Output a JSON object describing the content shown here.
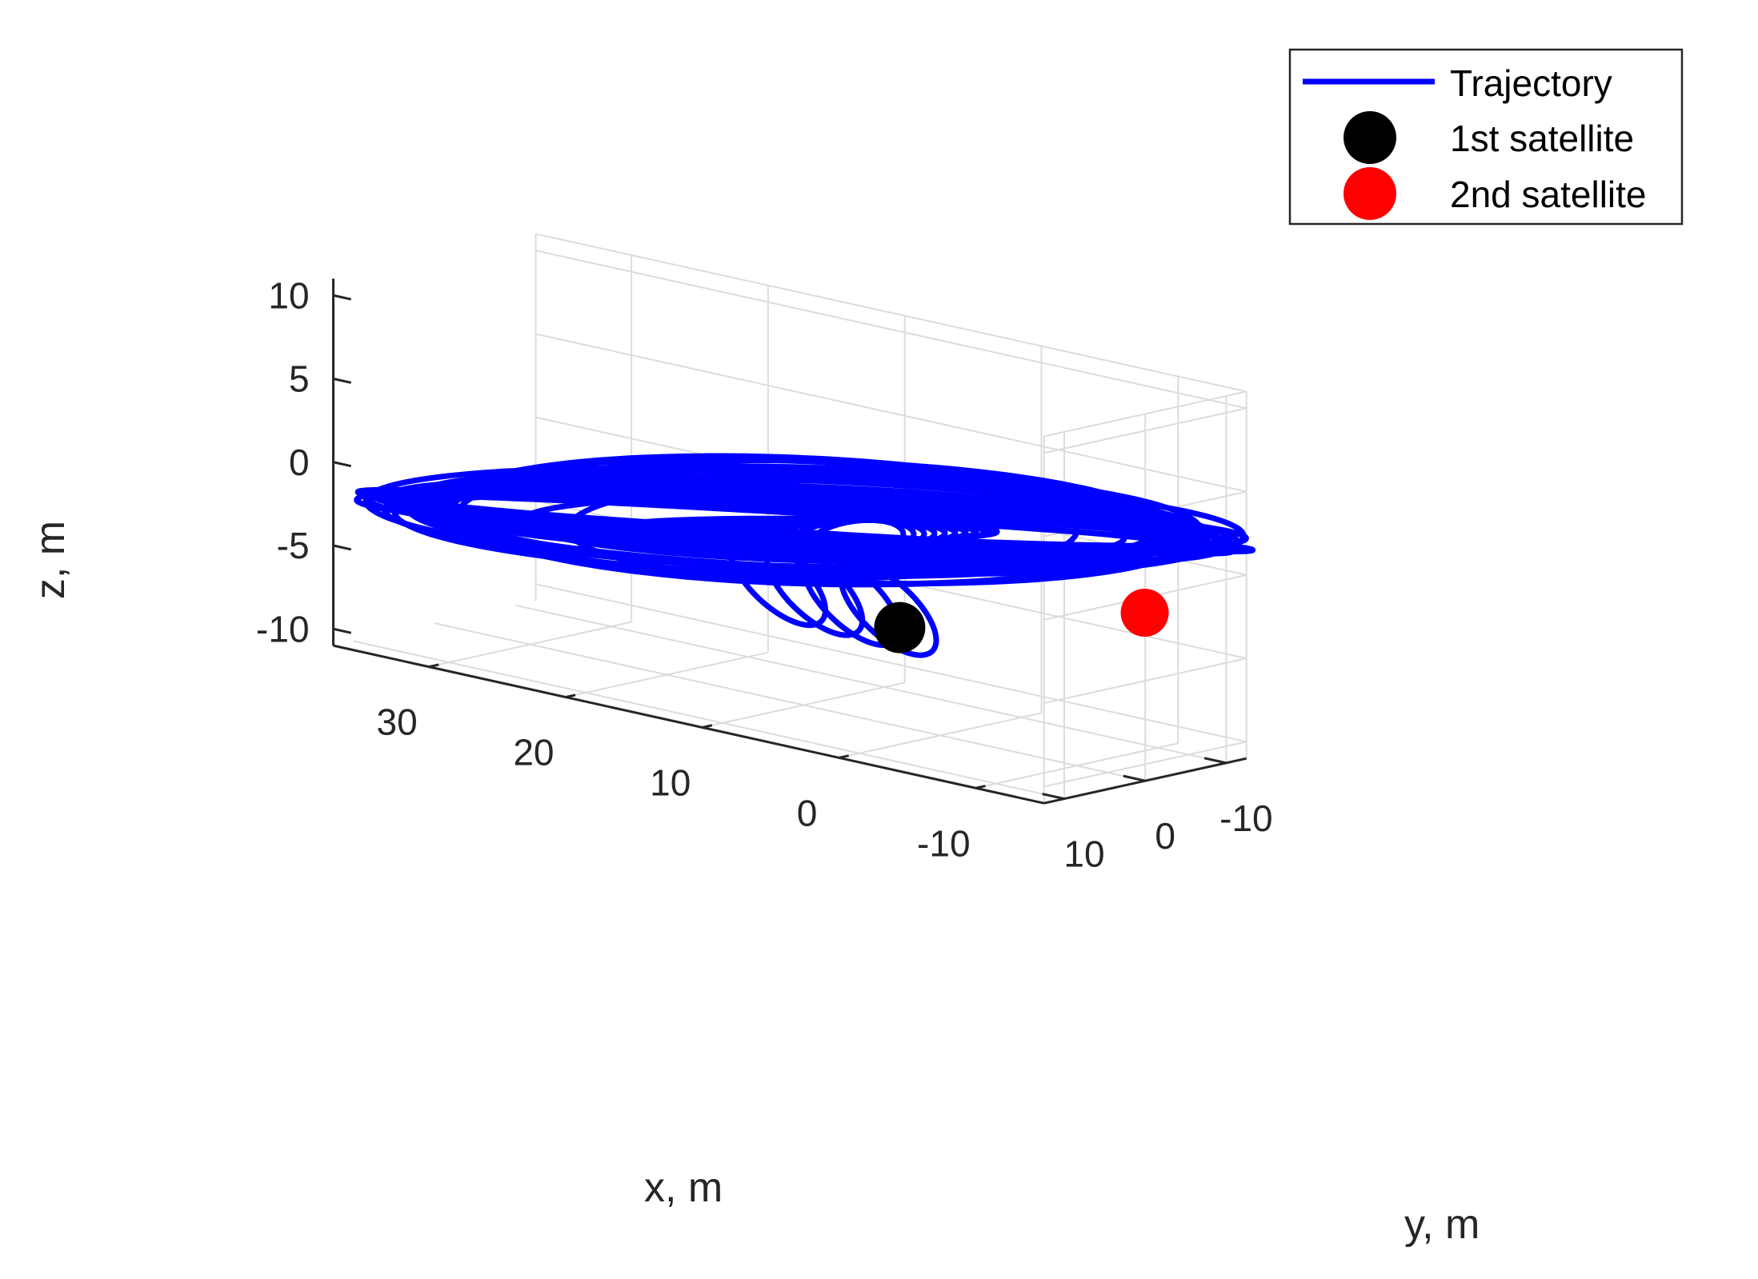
{
  "chart_data": {
    "type": "line",
    "projection": "3d",
    "title": "",
    "xlabel": "x, m",
    "ylabel": "y, m",
    "zlabel": "z, m",
    "xlim": [
      -15,
      37
    ],
    "ylim": [
      -12.5,
      12.5
    ],
    "zlim": [
      -11,
      11
    ],
    "x_ticks": [
      "30",
      "20",
      "10",
      "0",
      "-10"
    ],
    "y_ticks": [
      "10",
      "0",
      "-10"
    ],
    "z_ticks": [
      "10",
      "5",
      "0",
      "-5",
      "-10"
    ],
    "grid": true,
    "legend_position": "top-right",
    "colors": {
      "trajectory": "#0000ff",
      "satellite_1": "#000000",
      "satellite_2": "#ff0000",
      "grid": "#dcdcdc",
      "axis": "#262626"
    },
    "series": [
      {
        "name": "Trajectory",
        "description_points": "spiral trajectory in x-y plane tilted in z; outer band radius ~25 m, inner loops radius ~5-12 m",
        "outer_band": {
          "x_center": 10,
          "y_center": 0,
          "radius_min": 22,
          "radius_max": 28,
          "z_amplitude": 8
        },
        "inner_loops": {
          "x_center": 5,
          "y_center": 2,
          "radius_min": 3,
          "radius_max": 12,
          "z_amplitude": 3
        }
      },
      {
        "name": "1st satellite",
        "points": [
          {
            "x": 0,
            "y": 5,
            "z": -4
          }
        ]
      },
      {
        "name": "2nd satellite",
        "points": [
          {
            "x": -12,
            "y": -5,
            "z": -2
          }
        ]
      }
    ],
    "legend": [
      {
        "label": "Trajectory",
        "kind": "line",
        "color": "#0000ff"
      },
      {
        "label": "1st satellite",
        "kind": "marker",
        "color": "#000000"
      },
      {
        "label": "2nd satellite",
        "kind": "marker",
        "color": "#ff0000"
      }
    ]
  }
}
